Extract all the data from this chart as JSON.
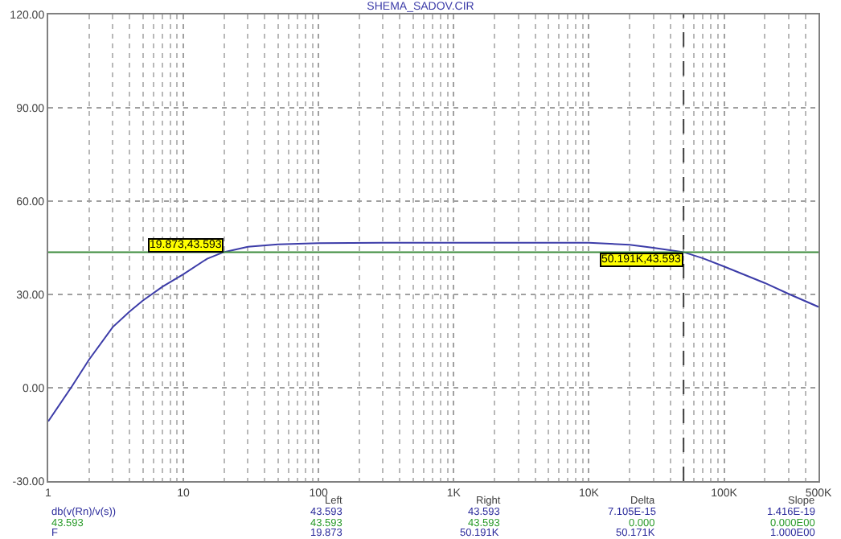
{
  "chart_data": {
    "type": "line",
    "title": "SHEMA_SADOV.CIR",
    "log": "x",
    "grid": true,
    "marker": "none",
    "line_style": "solid",
    "x": [
      1,
      1.5,
      2,
      3,
      4,
      5,
      7,
      10,
      15,
      19.873,
      30,
      50,
      100,
      300,
      1000,
      10000,
      20000,
      30000,
      50191,
      70000,
      100000,
      200000,
      300000,
      500000
    ],
    "series": [
      {
        "color": "#3c3ca8",
        "values": [
          -10.8,
          0.5,
          9,
          19.5,
          24.5,
          28,
          32.5,
          36.5,
          41.5,
          43.6,
          45.3,
          46.1,
          46.5,
          46.6,
          46.6,
          46.6,
          46.0,
          45.0,
          43.6,
          41.6,
          39.0,
          33.7,
          30.2,
          26.0
        ]
      }
    ],
    "xlim": [
      1,
      500000
    ],
    "xticks": [
      1,
      10,
      100,
      {
        "value": 1000,
        "label": "1K"
      },
      {
        "value": 10000,
        "label": "10K"
      },
      {
        "value": 100000,
        "label": "100K"
      },
      {
        "value": 500000,
        "label": "500K"
      }
    ],
    "ylim": [
      -30,
      120
    ],
    "yticks": [
      {
        "value": -30,
        "label": "-30.00"
      },
      {
        "value": 0,
        "label": "0.00"
      },
      {
        "value": 30,
        "label": "30.00"
      },
      {
        "value": 60,
        "label": "60.00"
      },
      {
        "value": 90,
        "label": "90.00"
      },
      {
        "value": 120,
        "label": "120.00"
      }
    ],
    "ref_lines": [
      {
        "axis": "y",
        "value": 43.593,
        "label": null,
        "color": "#3c8c3c",
        "line_style": "solid"
      },
      {
        "axis": "x",
        "value": 50191,
        "label": null,
        "color": "#404040",
        "line_style": "dashed"
      }
    ],
    "annotations": [
      {
        "text": "19.873,43.593",
        "x": 19.873,
        "y": 43.593
      },
      {
        "text": "50.191K,43.593",
        "x": 50191,
        "y": 43.593
      },
      "Left",
      "Right",
      "Delta",
      "Slope",
      "db(v(Rn)/v(s))",
      "43.593",
      "43.593",
      "7.105E-15",
      "1.416E-19",
      "43.593",
      "43.593",
      "43.593",
      "0.000",
      "0.000E00",
      "F",
      "19.873",
      "50.191K",
      "50.171K",
      "1.000E00"
    ]
  }
}
